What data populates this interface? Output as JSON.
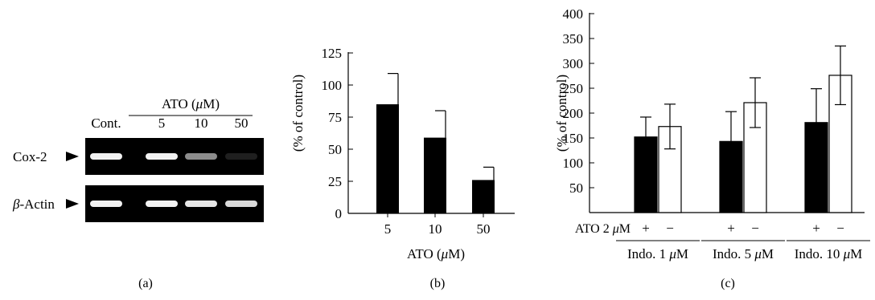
{
  "panel_labels": {
    "a": "(a)",
    "b": "(b)",
    "c": "(c)"
  },
  "blot": {
    "treatment_header": "ATO (",
    "treatment_unit_mu": "μ",
    "treatment_unit_rest": "M)",
    "lanes": [
      "Cont.",
      "5",
      "10",
      "50"
    ],
    "rows": [
      {
        "label": "Cox-2",
        "intensities": [
          0.95,
          0.95,
          0.55,
          0.12
        ]
      },
      {
        "label_greek": "β",
        "label_rest": "-Actin",
        "intensities": [
          0.95,
          0.95,
          0.9,
          0.85
        ]
      }
    ],
    "colors": {
      "gel": "#000000",
      "band": "#ffffff"
    }
  },
  "chart_data": [
    {
      "type": "bar",
      "categories": [
        "5",
        "10",
        "50"
      ],
      "values": [
        85,
        59,
        26
      ],
      "errors": [
        24,
        21,
        10
      ],
      "ylabel": "(% of control)",
      "xlabel": "ATO (μM)",
      "ylim": [
        0,
        125
      ],
      "yticks": [
        0,
        25,
        50,
        75,
        100,
        125
      ],
      "grid": false,
      "bar_color": "#000000"
    },
    {
      "type": "bar",
      "categories": [
        "Indo. 1 μM",
        "Indo. 5 μM",
        "Indo. 10 μM"
      ],
      "series": [
        {
          "values": [
            152,
            143,
            181
          ],
          "errors": [
            40,
            60,
            68
          ],
          "color": "#000000"
        },
        {
          "values": [
            173,
            221,
            276
          ],
          "errors": [
            45,
            50,
            59
          ],
          "color": "#ffffff"
        }
      ],
      "ylabel": "(% of control)",
      "ylim": [
        0,
        400
      ],
      "yticks": [
        50,
        100,
        150,
        200,
        250,
        300,
        350,
        400
      ],
      "row_label": "ATO 2 μM",
      "row_signs": [
        "+",
        "−"
      ],
      "grid": false
    }
  ]
}
